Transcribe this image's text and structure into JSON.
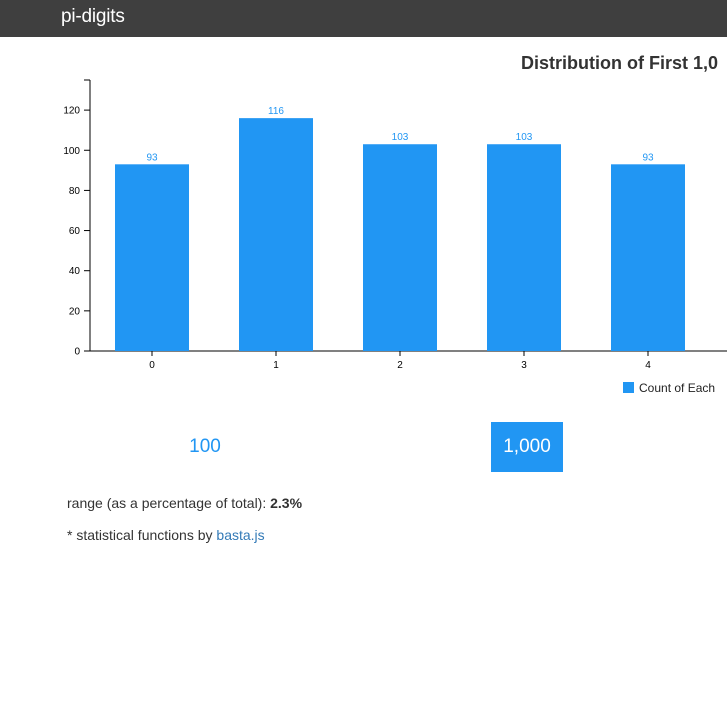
{
  "navbar": {
    "brand": "pi-digits"
  },
  "colors": {
    "navbar_bg": "#3f3f3f",
    "bar": "#2196f3",
    "accent": "#2196f3",
    "link": "#337ab7"
  },
  "chart_data": {
    "type": "bar",
    "title": "Distribution of First 1,0",
    "categories": [
      "0",
      "1",
      "2",
      "3",
      "4"
    ],
    "series": [
      {
        "name": "Count of Each",
        "values": [
          93,
          116,
          103,
          103,
          93
        ]
      }
    ],
    "ylim": [
      0,
      135
    ],
    "yticks": [
      0,
      20,
      40,
      60,
      80,
      100,
      120
    ],
    "xlabel": "",
    "ylabel": "",
    "grid": false,
    "legend": "bottom-right",
    "data_labels": true
  },
  "legend": {
    "label": "Count of Each"
  },
  "choices": {
    "option_100": "100",
    "option_1000": "1,000",
    "selected": "1,000"
  },
  "stats": {
    "range_label": "range (as a percentage of total): ",
    "range_value": "2.3%"
  },
  "credit": {
    "prefix": "* statistical functions by ",
    "link_text": "basta.js"
  }
}
